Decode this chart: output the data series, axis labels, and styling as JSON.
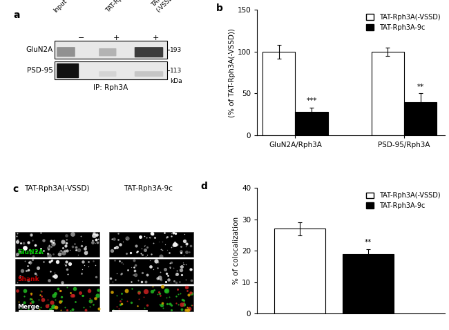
{
  "panel_b": {
    "groups": [
      "GluN2A/Rph3A",
      "PSD-95/Rph3A"
    ],
    "white_bar_values": [
      100,
      100
    ],
    "black_bar_values": [
      28,
      40
    ],
    "white_bar_errors": [
      8,
      5
    ],
    "black_bar_errors": [
      5,
      10
    ],
    "ylabel": "(% of TAT-Rph3A(-VSSD))",
    "ylim": [
      0,
      150
    ],
    "yticks": [
      0,
      50,
      100,
      150
    ],
    "legend_white": "TAT-Rph3A(-VSSD)",
    "legend_black": "TAT-Rph3A-9c",
    "sig_black_group1": "***",
    "sig_black_group2": "**",
    "title": "b"
  },
  "panel_d": {
    "categories": [
      "TAT-Rph3A(-VSSD)",
      "TAT-Rph3A-9c"
    ],
    "values": [
      27,
      19
    ],
    "errors": [
      2,
      1.5
    ],
    "ylabel": "% of colocalization",
    "ylim": [
      0,
      40
    ],
    "yticks": [
      0,
      10,
      20,
      30,
      40
    ],
    "legend_white": "TAT-Rph3A(-VSSD)",
    "legend_black": "TAT-Rph3A-9c",
    "sig": "**",
    "title": "d"
  },
  "panel_a": {
    "title": "a",
    "ip_label": "IP: Rph3A"
  },
  "panel_c": {
    "title": "c",
    "left_title": "TAT-Rph3A(-VSSD)",
    "right_title": "TAT-Rph3A-9c",
    "row_labels": [
      "GluN2A",
      "Shank",
      "Merge"
    ]
  },
  "colors": {
    "white_bar": "#ffffff",
    "black_bar": "#000000",
    "bar_edge": "#000000",
    "background": "#ffffff"
  },
  "font_size": 7.5,
  "title_font_size": 10
}
